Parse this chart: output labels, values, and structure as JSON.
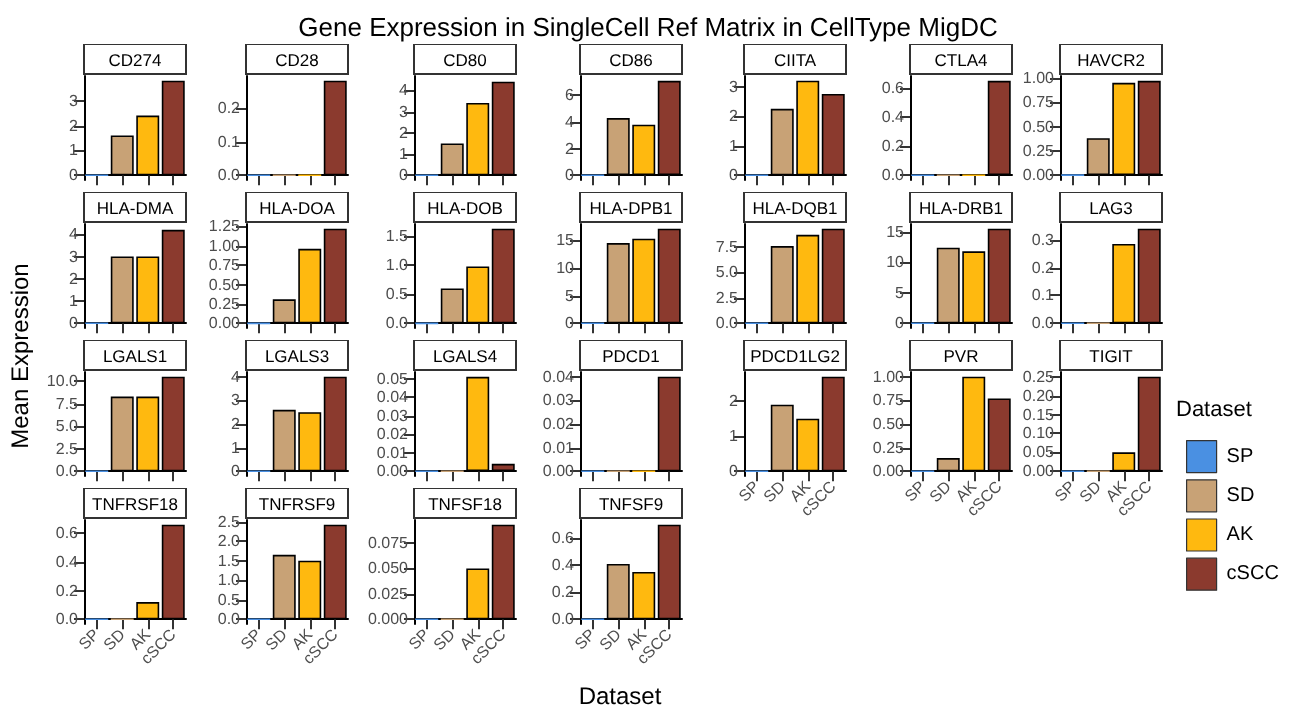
{
  "chart_data": [
    {
      "type": "other",
      "title": "Gene Expression in SingleCell Ref Matrix in CellType MigDC",
      "xlabel": "Dataset",
      "ylabel": "Mean Expression",
      "legend_title": "Dataset",
      "legend": "right",
      "series": [
        {
          "name": "SP",
          "color": "#4a90e2"
        },
        {
          "name": "SD",
          "color": "#c8a276"
        },
        {
          "name": "AK",
          "color": "#ffb90f"
        },
        {
          "name": "cSCC",
          "color": "#8b3a2e"
        }
      ]
    },
    {
      "type": "bar",
      "title": "CD274",
      "categories": [
        null,
        null,
        null,
        null
      ],
      "values": [
        0,
        1.6,
        2.4,
        3.8
      ],
      "colors": [
        "#4a90e2",
        "#c8a276",
        "#ffb90f",
        "#8b3a2e"
      ],
      "ylim": [
        -0.19,
        3.99
      ],
      "yticks": [
        0,
        1,
        2,
        3
      ],
      "tick_labels": "y"
    },
    {
      "type": "bar",
      "title": "CD28",
      "categories": [
        null,
        null,
        null,
        null
      ],
      "values": [
        0,
        0,
        0,
        0.28
      ],
      "colors": [
        "#4a90e2",
        "#c8a276",
        "#ffb90f",
        "#8b3a2e"
      ],
      "ylim": [
        -0.014,
        0.294
      ],
      "yticks": [
        {
          "value": 0,
          "label": "0.0"
        },
        {
          "value": 0.1,
          "label": "0.1"
        },
        {
          "value": 0.2,
          "label": "0.2"
        }
      ],
      "tick_labels": "y"
    },
    {
      "type": "bar",
      "title": "CD80",
      "categories": [
        null,
        null,
        null,
        null
      ],
      "values": [
        0,
        1.5,
        3.4,
        4.4
      ],
      "colors": [
        "#4a90e2",
        "#c8a276",
        "#ffb90f",
        "#8b3a2e"
      ],
      "ylim": [
        -0.22,
        4.67
      ],
      "yticks": [
        0,
        1,
        2,
        3,
        4
      ],
      "tick_labels": "y"
    },
    {
      "type": "bar",
      "title": "CD86",
      "categories": [
        null,
        null,
        null,
        null
      ],
      "values": [
        0,
        4.3,
        3.8,
        7.1
      ],
      "colors": [
        "#4a90e2",
        "#c8a276",
        "#ffb90f",
        "#8b3a2e"
      ],
      "ylim": [
        -0.36,
        7.46
      ],
      "yticks": [
        0,
        2,
        4,
        6
      ],
      "tick_labels": "y"
    },
    {
      "type": "bar",
      "title": "CIITA",
      "categories": [
        null,
        null,
        null,
        null
      ],
      "values": [
        0,
        2.25,
        3.2,
        2.75
      ],
      "colors": [
        "#4a90e2",
        "#c8a276",
        "#ffb90f",
        "#8b3a2e"
      ],
      "ylim": [
        -0.16,
        3.36
      ],
      "yticks": [
        0,
        1,
        2,
        3
      ],
      "tick_labels": "y"
    },
    {
      "type": "bar",
      "title": "CTLA4",
      "categories": [
        null,
        null,
        null,
        null
      ],
      "values": [
        0,
        0,
        0,
        0.65
      ],
      "colors": [
        "#4a90e2",
        "#c8a276",
        "#ffb90f",
        "#8b3a2e"
      ],
      "ylim": [
        -0.033,
        0.683
      ],
      "yticks": [
        {
          "value": 0,
          "label": "0.0"
        },
        {
          "value": 0.2,
          "label": "0.2"
        },
        {
          "value": 0.4,
          "label": "0.4"
        },
        {
          "value": 0.6,
          "label": "0.6"
        }
      ],
      "tick_labels": "y"
    },
    {
      "type": "bar",
      "title": "HAVCR2",
      "categories": [
        null,
        null,
        null,
        null
      ],
      "values": [
        0,
        0.38,
        0.95,
        0.97
      ],
      "colors": [
        "#4a90e2",
        "#c8a276",
        "#ffb90f",
        "#8b3a2e"
      ],
      "ylim": [
        -0.05,
        1.02
      ],
      "yticks": [
        {
          "value": 0,
          "label": "0.00"
        },
        {
          "value": 0.25,
          "label": "0.25"
        },
        {
          "value": 0.5,
          "label": "0.50"
        },
        {
          "value": 0.75,
          "label": "0.75"
        },
        {
          "value": 1,
          "label": "1.00"
        }
      ],
      "tick_labels": "y"
    },
    {
      "type": "bar",
      "title": "HLA-DMA",
      "categories": [
        null,
        null,
        null,
        null
      ],
      "values": [
        0,
        3.0,
        3.0,
        4.2
      ],
      "colors": [
        "#4a90e2",
        "#c8a276",
        "#ffb90f",
        "#8b3a2e"
      ],
      "ylim": [
        -0.21,
        4.46
      ],
      "yticks": [
        0,
        1,
        2,
        3,
        4
      ],
      "tick_labels": "y"
    },
    {
      "type": "bar",
      "title": "HLA-DOA",
      "categories": [
        null,
        null,
        null,
        null
      ],
      "values": [
        0,
        0.31,
        0.96,
        1.22
      ],
      "colors": [
        "#4a90e2",
        "#c8a276",
        "#ffb90f",
        "#8b3a2e"
      ],
      "ylim": [
        -0.06,
        1.28
      ],
      "yticks": [
        {
          "value": 0,
          "label": "0.00"
        },
        {
          "value": 0.25,
          "label": "0.25"
        },
        {
          "value": 0.5,
          "label": "0.50"
        },
        {
          "value": 0.75,
          "label": "0.75"
        },
        {
          "value": 1,
          "label": "1.00"
        },
        {
          "value": 1.25,
          "label": "1.25"
        }
      ],
      "tick_labels": "y"
    },
    {
      "type": "bar",
      "title": "HLA-DOB",
      "categories": [
        null,
        null,
        null,
        null
      ],
      "values": [
        0,
        0.6,
        0.98,
        1.63
      ],
      "colors": [
        "#4a90e2",
        "#c8a276",
        "#ffb90f",
        "#8b3a2e"
      ],
      "ylim": [
        -0.08,
        1.71
      ],
      "yticks": [
        {
          "value": 0,
          "label": "0.0"
        },
        {
          "value": 0.5,
          "label": "0.5"
        },
        {
          "value": 1,
          "label": "1.0"
        },
        {
          "value": 1.5,
          "label": "1.5"
        }
      ],
      "tick_labels": "y"
    },
    {
      "type": "bar",
      "title": "HLA-DPB1",
      "categories": [
        null,
        null,
        null,
        null
      ],
      "values": [
        0,
        14.5,
        15.3,
        17.1
      ],
      "colors": [
        "#4a90e2",
        "#c8a276",
        "#ffb90f",
        "#8b3a2e"
      ],
      "ylim": [
        -0.86,
        17.96
      ],
      "yticks": [
        0,
        5,
        10,
        15
      ],
      "tick_labels": "y"
    },
    {
      "type": "bar",
      "title": "HLA-DQB1",
      "categories": [
        null,
        null,
        null,
        null
      ],
      "values": [
        0,
        7.6,
        8.7,
        9.3
      ],
      "colors": [
        "#4a90e2",
        "#c8a276",
        "#ffb90f",
        "#8b3a2e"
      ],
      "ylim": [
        -0.47,
        9.77
      ],
      "yticks": [
        {
          "value": 0,
          "label": "0.0"
        },
        {
          "value": 2.5,
          "label": "2.5"
        },
        {
          "value": 5,
          "label": "5.0"
        },
        {
          "value": 7.5,
          "label": "7.5"
        }
      ],
      "tick_labels": "y"
    },
    {
      "type": "bar",
      "title": "HLA-DRB1",
      "categories": [
        null,
        null,
        null,
        null
      ],
      "values": [
        0,
        12.4,
        11.8,
        15.5
      ],
      "colors": [
        "#4a90e2",
        "#c8a276",
        "#ffb90f",
        "#8b3a2e"
      ],
      "ylim": [
        -0.78,
        16.28
      ],
      "yticks": [
        0,
        5,
        10,
        15
      ],
      "tick_labels": "y"
    },
    {
      "type": "bar",
      "title": "LAG3",
      "categories": [
        null,
        null,
        null,
        null
      ],
      "values": [
        0,
        0,
        0.285,
        0.34
      ],
      "colors": [
        "#4a90e2",
        "#c8a276",
        "#ffb90f",
        "#8b3a2e"
      ],
      "ylim": [
        -0.017,
        0.357
      ],
      "yticks": [
        {
          "value": 0,
          "label": "0.0"
        },
        {
          "value": 0.1,
          "label": "0.1"
        },
        {
          "value": 0.2,
          "label": "0.2"
        },
        {
          "value": 0.3,
          "label": "0.3"
        }
      ],
      "tick_labels": "y"
    },
    {
      "type": "bar",
      "title": "LGALS1",
      "categories": [
        null,
        null,
        null,
        null
      ],
      "values": [
        0,
        8.3,
        8.3,
        10.5
      ],
      "colors": [
        "#4a90e2",
        "#c8a276",
        "#ffb90f",
        "#8b3a2e"
      ],
      "ylim": [
        -0.53,
        11.03
      ],
      "yticks": [
        {
          "value": 0,
          "label": "0.0"
        },
        {
          "value": 2.5,
          "label": "2.5"
        },
        {
          "value": 5,
          "label": "5.0"
        },
        {
          "value": 7.5,
          "label": "7.5"
        },
        {
          "value": 10,
          "label": "10.0"
        }
      ],
      "tick_labels": "y"
    },
    {
      "type": "bar",
      "title": "LGALS3",
      "categories": [
        null,
        null,
        null,
        null
      ],
      "values": [
        0,
        2.6,
        2.5,
        4.0
      ],
      "colors": [
        "#4a90e2",
        "#c8a276",
        "#ffb90f",
        "#8b3a2e"
      ],
      "ylim": [
        -0.2,
        4.2
      ],
      "yticks": [
        0,
        1,
        2,
        3,
        4
      ],
      "tick_labels": "y"
    },
    {
      "type": "bar",
      "title": "LGALS4",
      "categories": [
        null,
        null,
        null,
        null
      ],
      "values": [
        0,
        0,
        0.051,
        0.004
      ],
      "colors": [
        "#4a90e2",
        "#c8a276",
        "#ffb90f",
        "#8b3a2e"
      ],
      "ylim": [
        -0.0026,
        0.0536
      ],
      "yticks": [
        {
          "value": 0,
          "label": "0.00"
        },
        {
          "value": 0.01,
          "label": "0.01"
        },
        {
          "value": 0.02,
          "label": "0.02"
        },
        {
          "value": 0.03,
          "label": "0.03"
        },
        {
          "value": 0.04,
          "label": "0.04"
        },
        {
          "value": 0.05,
          "label": "0.05"
        }
      ],
      "tick_labels": "y"
    },
    {
      "type": "bar",
      "title": "PDCD1",
      "categories": [
        null,
        null,
        null,
        null
      ],
      "values": [
        0,
        0,
        0,
        0.04
      ],
      "colors": [
        "#4a90e2",
        "#c8a276",
        "#ffb90f",
        "#8b3a2e"
      ],
      "ylim": [
        -0.002,
        0.042
      ],
      "yticks": [
        {
          "value": 0,
          "label": "0.00"
        },
        {
          "value": 0.01,
          "label": "0.01"
        },
        {
          "value": 0.02,
          "label": "0.02"
        },
        {
          "value": 0.03,
          "label": "0.03"
        },
        {
          "value": 0.04,
          "label": "0.04"
        }
      ],
      "tick_labels": "y"
    },
    {
      "type": "bar",
      "title": "PDCD1LG2",
      "categories": [
        "SP",
        "SD",
        "AK",
        "cSCC"
      ],
      "values": [
        0,
        1.9,
        1.5,
        2.7
      ],
      "colors": [
        "#4a90e2",
        "#c8a276",
        "#ffb90f",
        "#8b3a2e"
      ],
      "ylim": [
        -0.135,
        2.835
      ],
      "yticks": [
        0,
        1,
        2
      ]
    },
    {
      "type": "bar",
      "title": "PVR",
      "categories": [
        "SP",
        "SD",
        "AK",
        "cSCC"
      ],
      "values": [
        0,
        0.14,
        1.0,
        0.77
      ],
      "colors": [
        "#4a90e2",
        "#c8a276",
        "#ffb90f",
        "#8b3a2e"
      ],
      "ylim": [
        -0.05,
        1.05
      ],
      "yticks": [
        {
          "value": 0,
          "label": "0.00"
        },
        {
          "value": 0.25,
          "label": "0.25"
        },
        {
          "value": 0.5,
          "label": "0.50"
        },
        {
          "value": 0.75,
          "label": "0.75"
        },
        {
          "value": 1,
          "label": "1.00"
        }
      ]
    },
    {
      "type": "bar",
      "title": "TIGIT",
      "categories": [
        "SP",
        "SD",
        "AK",
        "cSCC"
      ],
      "values": [
        0,
        0,
        0.05,
        0.25
      ],
      "colors": [
        "#4a90e2",
        "#c8a276",
        "#ffb90f",
        "#8b3a2e"
      ],
      "ylim": [
        -0.0125,
        0.2625
      ],
      "yticks": [
        {
          "value": 0,
          "label": "0.00"
        },
        {
          "value": 0.05,
          "label": "0.05"
        },
        {
          "value": 0.1,
          "label": "0.10"
        },
        {
          "value": 0.15,
          "label": "0.15"
        },
        {
          "value": 0.2,
          "label": "0.20"
        },
        {
          "value": 0.25,
          "label": "0.25"
        }
      ]
    },
    {
      "type": "bar",
      "title": "TNFRSF18",
      "categories": [
        "SP",
        "SD",
        "AK",
        "cSCC"
      ],
      "values": [
        0,
        0,
        0.12,
        0.66
      ],
      "colors": [
        "#4a90e2",
        "#c8a276",
        "#ffb90f",
        "#8b3a2e"
      ],
      "ylim": [
        -0.033,
        0.693
      ],
      "yticks": [
        {
          "value": 0,
          "label": "0.0"
        },
        {
          "value": 0.2,
          "label": "0.2"
        },
        {
          "value": 0.4,
          "label": "0.4"
        },
        {
          "value": 0.6,
          "label": "0.6"
        }
      ]
    },
    {
      "type": "bar",
      "title": "TNFRSF9",
      "categories": [
        "SP",
        "SD",
        "AK",
        "cSCC"
      ],
      "values": [
        0,
        1.65,
        1.5,
        2.42
      ],
      "colors": [
        "#4a90e2",
        "#c8a276",
        "#ffb90f",
        "#8b3a2e"
      ],
      "ylim": [
        -0.121,
        2.541
      ],
      "yticks": [
        {
          "value": 0,
          "label": "0.0"
        },
        {
          "value": 0.5,
          "label": "0.5"
        },
        {
          "value": 1,
          "label": "1.0"
        },
        {
          "value": 1.5,
          "label": "1.5"
        },
        {
          "value": 2,
          "label": "2.0"
        },
        {
          "value": 2.5,
          "label": "2.5"
        }
      ]
    },
    {
      "type": "bar",
      "title": "TNFSF18",
      "categories": [
        "SP",
        "SD",
        "AK",
        "cSCC"
      ],
      "values": [
        0,
        0,
        0.05,
        0.093
      ],
      "colors": [
        "#4a90e2",
        "#c8a276",
        "#ffb90f",
        "#8b3a2e"
      ],
      "ylim": [
        -0.0047,
        0.0977
      ],
      "yticks": [
        {
          "value": 0,
          "label": "0.000"
        },
        {
          "value": 0.025,
          "label": "0.025"
        },
        {
          "value": 0.05,
          "label": "0.050"
        },
        {
          "value": 0.075,
          "label": "0.075"
        }
      ]
    },
    {
      "type": "bar",
      "title": "TNFSF9",
      "categories": [
        "SP",
        "SD",
        "AK",
        "cSCC"
      ],
      "values": [
        0,
        0.41,
        0.35,
        0.7
      ],
      "colors": [
        "#4a90e2",
        "#c8a276",
        "#ffb90f",
        "#8b3a2e"
      ],
      "ylim": [
        -0.035,
        0.735
      ],
      "yticks": [
        {
          "value": 0,
          "label": "0.0"
        },
        {
          "value": 0.2,
          "label": "0.2"
        },
        {
          "value": 0.4,
          "label": "0.4"
        },
        {
          "value": 0.6,
          "label": "0.6"
        }
      ]
    }
  ]
}
